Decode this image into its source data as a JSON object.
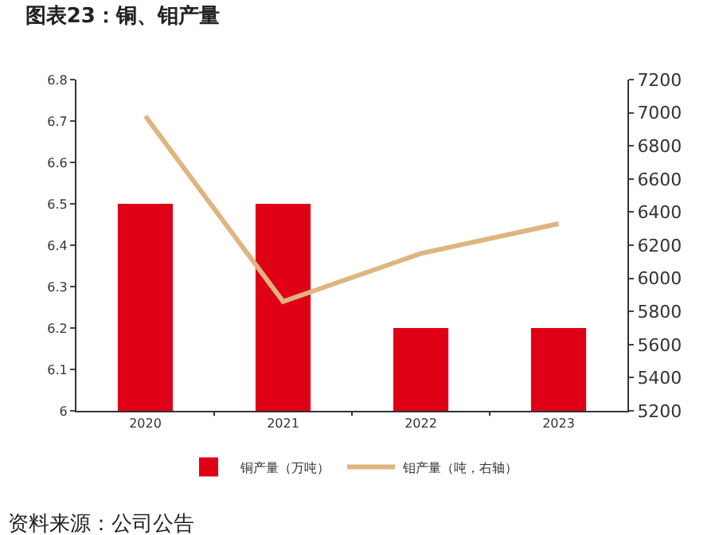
{
  "chart_data": {
    "type": "bar",
    "title": "图表23：铜、钼产量",
    "categories": [
      "2020",
      "2021",
      "2022",
      "2023"
    ],
    "series": [
      {
        "name": "铜产量（万吨）",
        "color": "#e00016",
        "values": [
          6.5,
          6.5,
          6.2,
          6.2
        ]
      },
      {
        "name": "钼产量（吨，右轴）",
        "type": "line",
        "axis": "y2",
        "color": "#dfb57f",
        "values": [
          6980,
          5860,
          6150,
          6330
        ]
      }
    ],
    "ylim": [
      6,
      6.8
    ],
    "yticks": [
      6,
      6.1,
      6.2,
      6.3,
      6.4,
      6.5,
      6.6,
      6.7,
      6.8
    ],
    "y2lim": [
      5200,
      7200
    ],
    "y2ticks": [
      5200,
      5400,
      5600,
      5800,
      6000,
      6200,
      6400,
      6600,
      6800,
      7000,
      7200
    ],
    "grid": false,
    "legend": "bottom",
    "marker": "none",
    "line_style": "solid",
    "annotations": [
      "资料来源：公司公告"
    ]
  }
}
